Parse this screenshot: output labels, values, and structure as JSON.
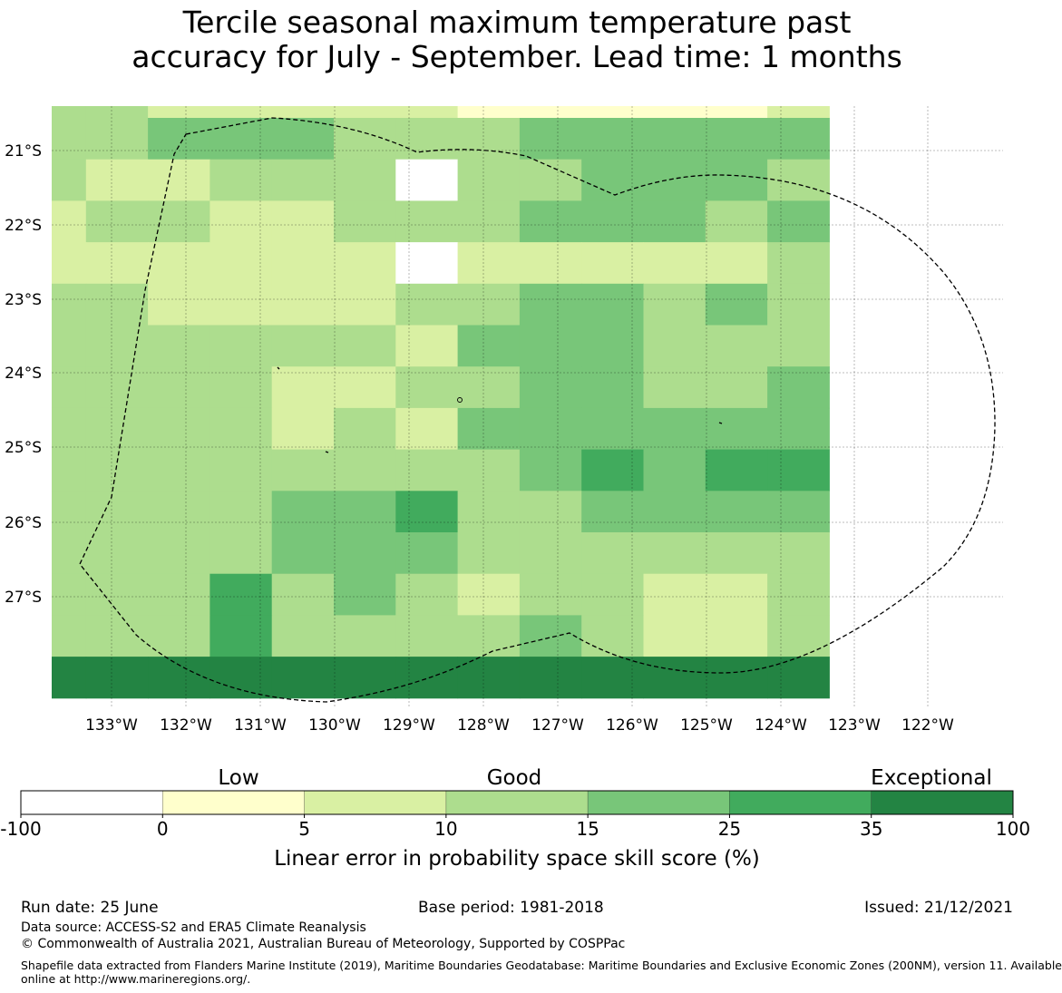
{
  "title": {
    "line1": "Tercile seasonal maximum temperature past",
    "line2": "accuracy for July - September. Lead time: 1 months"
  },
  "map": {
    "lon_labels": [
      "133°W",
      "132°W",
      "131°W",
      "130°W",
      "129°W",
      "128°W",
      "127°W",
      "126°W",
      "125°W",
      "124°W",
      "123°W",
      "122°W"
    ],
    "lat_labels": [
      "21°S",
      "22°S",
      "23°S",
      "24°S",
      "25°S",
      "26°S",
      "27°S"
    ],
    "grid_rows": [
      "3322222111112",
      "3344433344444",
      "3223330334443",
      "2332233344434",
      "2222220222223",
      "3322223344343",
      "3333332444333",
      "3333223344334",
      "3333232444444",
      "3333333345455",
      "3333445334444",
      "3333444333333",
      "3335343233223",
      "3335333343223",
      "6666666666666"
    ],
    "colors": [
      "#ffffff",
      "#ffffcc",
      "#d9f0a3",
      "#addd8e",
      "#78c679",
      "#41ab5d",
      "#238443"
    ]
  },
  "colorbar": {
    "ticks": [
      "-100",
      "0",
      "5",
      "10",
      "15",
      "25",
      "35",
      "100"
    ],
    "bands": [
      "Low",
      "Good",
      "Exceptional"
    ],
    "label": "Linear error in probability space skill score (%)"
  },
  "footer": {
    "run_date": "Run date: 25 June",
    "base_period": "Base period: 1981-2018",
    "issued": "Issued: 21/12/2021",
    "data_source": "Data source: ACCESS-S2 and ERA5 Climate Reanalysis",
    "copyright": "© Commonwealth of Australia 2021, Australian Bureau of Meteorology, Supported by COSPPac",
    "shapefile_line1": "Shapefile data extracted from Flanders Marine Institute (2019), Maritime Boundaries Geodatabase: Maritime Boundaries and Exclusive Economic Zones (200NM), version 11. Available",
    "shapefile_line2": "online at http://www.marineregions.org/."
  }
}
